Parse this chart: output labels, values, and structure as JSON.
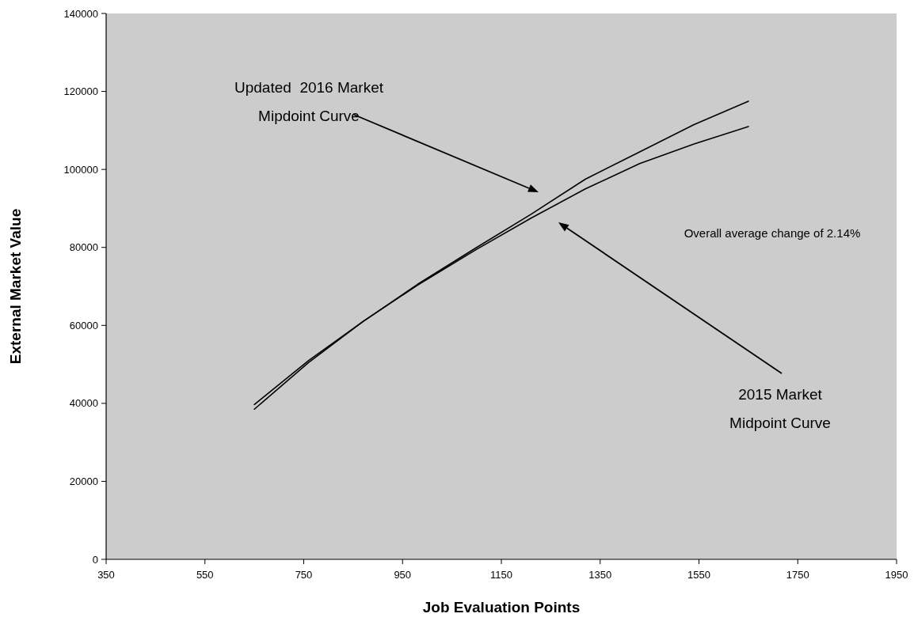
{
  "chart_data": {
    "type": "line",
    "xlabel": "Job Evaluation Points",
    "ylabel": "External Market Value",
    "xlim": [
      350,
      1950
    ],
    "xticks": [
      350,
      550,
      750,
      950,
      1150,
      1350,
      1550,
      1750,
      1950
    ],
    "ylim": [
      0,
      140000
    ],
    "yticks": [
      0,
      20000,
      40000,
      60000,
      80000,
      100000,
      120000,
      140000
    ],
    "x": [
      650,
      760,
      870,
      980,
      1100,
      1210,
      1320,
      1430,
      1540,
      1650
    ],
    "series": [
      {
        "color": "#000000",
        "values": [
          38500,
          50500,
          61000,
          70500,
          80000,
          88500,
          97500,
          104500,
          111500,
          117500
        ]
      },
      {
        "color": "#000000",
        "values": [
          39700,
          51000,
          61000,
          70300,
          79500,
          87500,
          95000,
          101500,
          106500,
          111000
        ]
      }
    ],
    "grid": false,
    "marker": "none",
    "line_style": "solid",
    "annotations": [
      "Updated  2016 Market\nMipdoint Curve",
      "2015 Market\nMidpoint Curve",
      "Overall average change of 2.14%"
    ]
  }
}
